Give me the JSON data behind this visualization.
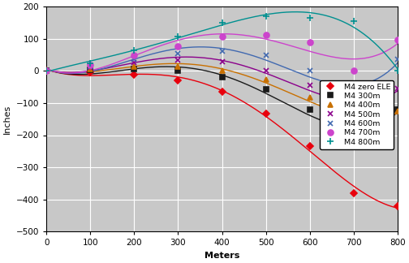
{
  "title": "",
  "xlabel": "Meters",
  "ylabel": "Inches",
  "xlim": [
    0,
    800
  ],
  "ylim": [
    -500,
    200
  ],
  "xticks": [
    0,
    100,
    200,
    300,
    400,
    500,
    600,
    700,
    800
  ],
  "yticks": [
    -500,
    -400,
    -300,
    -200,
    -100,
    0,
    100,
    200
  ],
  "bg_color": "#c8c8c8",
  "fig_width": 5.04,
  "fig_height": 3.24,
  "series": [
    {
      "label": "M4 zero ELE",
      "color": "#e8000d",
      "marker": "D",
      "markersize": 4,
      "x": [
        0,
        100,
        200,
        300,
        400,
        500,
        600,
        700,
        800
      ],
      "y": [
        0,
        -3,
        -12,
        -30,
        -65,
        -133,
        -235,
        -380,
        -420
      ]
    },
    {
      "label": "M4 300m",
      "color": "#1a1a1a",
      "marker": "s",
      "markersize": 5,
      "x": [
        0,
        100,
        200,
        300,
        400,
        500,
        600,
        700,
        800
      ],
      "y": [
        0,
        4,
        5,
        0,
        -20,
        -58,
        -120,
        -205,
        -120
      ]
    },
    {
      "label": "M4 400m",
      "color": "#c87000",
      "marker": "^",
      "markersize": 5,
      "x": [
        0,
        100,
        200,
        300,
        400,
        500,
        600,
        700,
        800
      ],
      "y": [
        0,
        6,
        14,
        14,
        0,
        -28,
        -82,
        -160,
        -125
      ]
    },
    {
      "label": "M4 500m",
      "color": "#8b008b",
      "marker": "x",
      "markersize": 5,
      "x": [
        0,
        100,
        200,
        300,
        400,
        500,
        600,
        700,
        800
      ],
      "y": [
        0,
        10,
        25,
        33,
        28,
        0,
        -45,
        -118,
        -55
      ]
    },
    {
      "label": "M4 600m",
      "color": "#4169b0",
      "marker": "x",
      "markersize": 5,
      "x": [
        0,
        100,
        200,
        300,
        400,
        500,
        600,
        700,
        800
      ],
      "y": [
        0,
        14,
        36,
        53,
        62,
        50,
        0,
        -75,
        35
      ]
    },
    {
      "label": "M4 700m",
      "color": "#cc44cc",
      "marker": "o",
      "markersize": 5,
      "x": [
        0,
        100,
        200,
        300,
        400,
        500,
        600,
        700,
        800
      ],
      "y": [
        0,
        18,
        48,
        76,
        108,
        113,
        88,
        0,
        97
      ]
    },
    {
      "label": "M4 800m",
      "color": "#009090",
      "marker": "+",
      "markersize": 6,
      "x": [
        0,
        100,
        200,
        300,
        400,
        500,
        600,
        700,
        800
      ],
      "y": [
        0,
        24,
        64,
        108,
        150,
        170,
        165,
        155,
        0
      ]
    }
  ]
}
